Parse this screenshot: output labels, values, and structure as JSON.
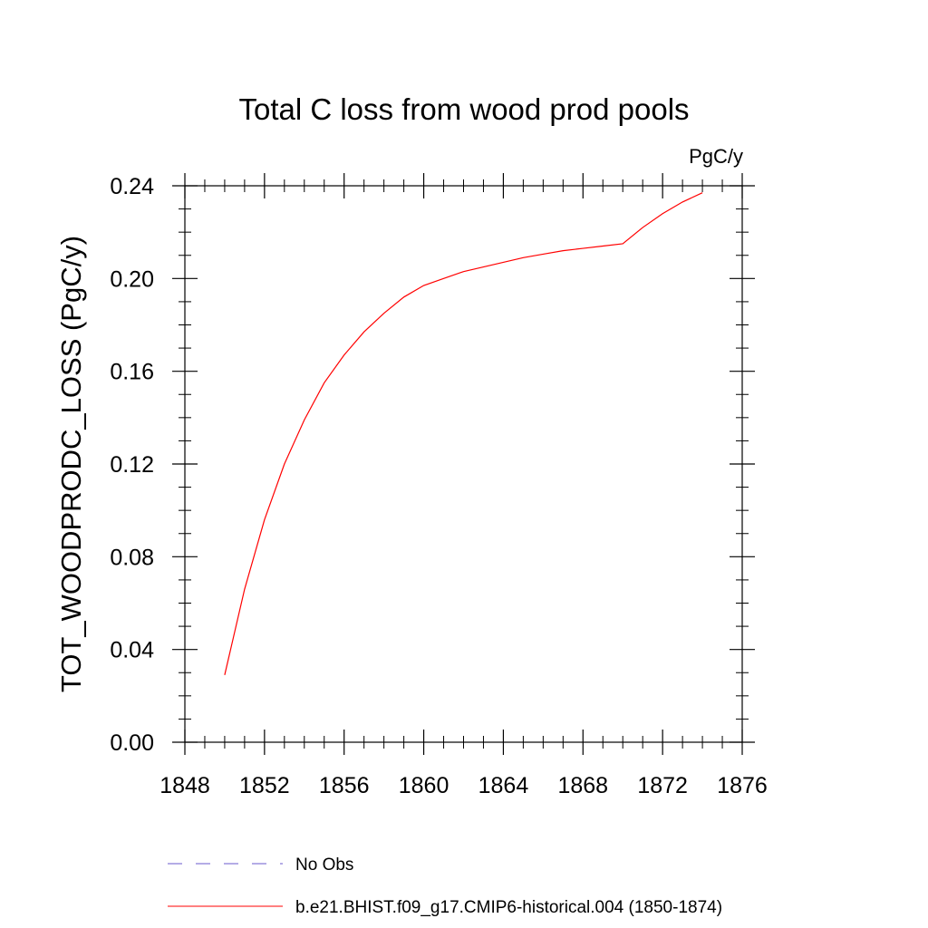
{
  "chart_data": {
    "type": "line",
    "title": "Total C loss from wood prod pools",
    "units_label": "PgC/y",
    "ylabel": "TOT_WOODPRODC_LOSS  (PgC/y)",
    "xlabel": "",
    "xlim": [
      1848,
      1876
    ],
    "ylim": [
      0.0,
      0.24
    ],
    "x_major_ticks": [
      1848,
      1852,
      1856,
      1860,
      1864,
      1868,
      1872,
      1876
    ],
    "x_tick_labels": [
      "1848",
      "1852",
      "1856",
      "1860",
      "1864",
      "1868",
      "1872",
      "1876"
    ],
    "x_minor_step": 1,
    "y_major_ticks": [
      0.0,
      0.04,
      0.08,
      0.12,
      0.16,
      0.2,
      0.24
    ],
    "y_tick_labels": [
      "0.00",
      "0.04",
      "0.08",
      "0.12",
      "0.16",
      "0.20",
      "0.24"
    ],
    "y_minor_step": 0.01,
    "grid": false,
    "legend_position": "bottom",
    "legend": [
      {
        "label": "No Obs",
        "color": "#6a5acd",
        "dash": "dashed"
      },
      {
        "label": "b.e21.BHIST.f09_g17.CMIP6-historical.004 (1850-1874)",
        "color": "#ff0000",
        "dash": "solid"
      }
    ],
    "series": [
      {
        "name": "b.e21.BHIST.f09_g17.CMIP6-historical.004 (1850-1874)",
        "color": "#ff0000",
        "x": [
          1850,
          1851,
          1852,
          1853,
          1854,
          1855,
          1856,
          1857,
          1858,
          1859,
          1860,
          1861,
          1862,
          1863,
          1864,
          1865,
          1866,
          1867,
          1868,
          1869,
          1870,
          1871,
          1872,
          1873,
          1874
        ],
        "y": [
          0.029,
          0.066,
          0.096,
          0.12,
          0.139,
          0.155,
          0.167,
          0.177,
          0.185,
          0.192,
          0.197,
          0.2,
          0.203,
          0.205,
          0.207,
          0.209,
          0.2105,
          0.212,
          0.213,
          0.214,
          0.215,
          0.222,
          0.228,
          0.233,
          0.237
        ]
      }
    ]
  }
}
